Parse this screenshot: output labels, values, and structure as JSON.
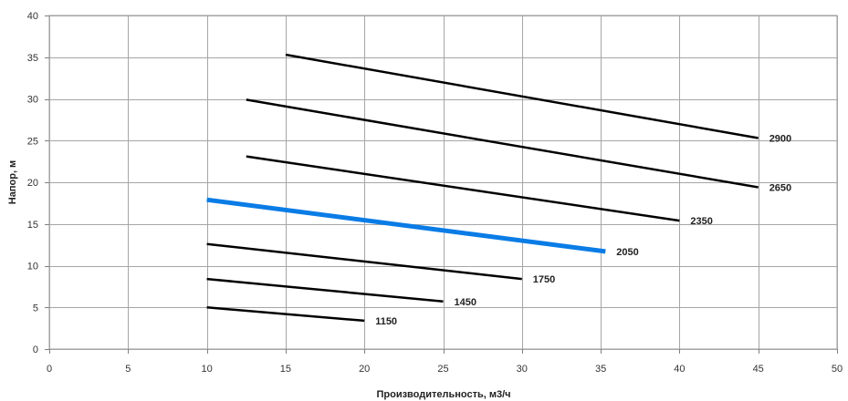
{
  "chart_data": {
    "type": "line",
    "title": "",
    "xlabel": "Производительность, м3/ч",
    "ylabel": "Напор, м",
    "xlim": [
      0,
      50
    ],
    "ylim": [
      0,
      40
    ],
    "x_ticks": [
      0,
      5,
      10,
      15,
      20,
      25,
      30,
      35,
      40,
      45,
      50
    ],
    "y_ticks": [
      0,
      5,
      10,
      15,
      20,
      25,
      30,
      35,
      40
    ],
    "grid": true,
    "legend": "none",
    "series": [
      {
        "name": "2900",
        "color": "#000000",
        "x": [
          15,
          45
        ],
        "y": [
          35.3,
          25.3
        ]
      },
      {
        "name": "2650",
        "color": "#000000",
        "x": [
          12.5,
          45
        ],
        "y": [
          29.9,
          19.4
        ]
      },
      {
        "name": "2350",
        "color": "#000000",
        "x": [
          12.5,
          40
        ],
        "y": [
          23.1,
          15.4
        ]
      },
      {
        "name": "2050",
        "color": "#0A7CE6",
        "highlight": true,
        "x": [
          10,
          35.3
        ],
        "y": [
          17.9,
          11.7
        ]
      },
      {
        "name": "1750",
        "color": "#000000",
        "x": [
          10,
          30
        ],
        "y": [
          12.6,
          8.4
        ]
      },
      {
        "name": "1450",
        "color": "#000000",
        "x": [
          10,
          25
        ],
        "y": [
          8.4,
          5.7
        ]
      },
      {
        "name": "1150",
        "color": "#000000",
        "x": [
          10,
          20
        ],
        "y": [
          5.0,
          3.4
        ]
      }
    ]
  }
}
